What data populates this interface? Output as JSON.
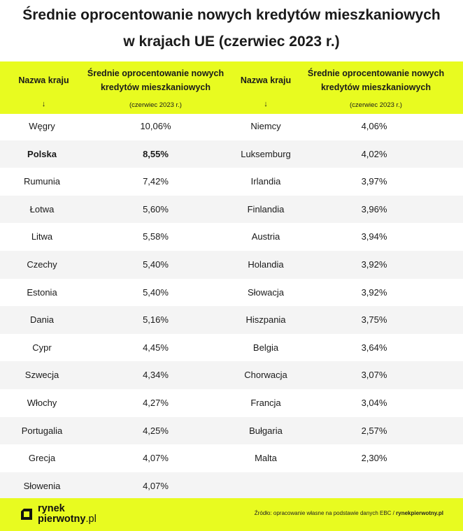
{
  "title": {
    "line1": "Średnie oprocentowanie nowych kredytów mieszkaniowych",
    "line2": "w krajach UE (czerwiec 2023 r.)"
  },
  "header": {
    "country_label": "Nazwa kraju",
    "arrow": "↓",
    "rate_label_line1": "Średnie oprocentowanie nowych",
    "rate_label_line2": "kredytów mieszkaniowych",
    "rate_sub": "(czerwiec 2023 r.)"
  },
  "rows": [
    {
      "c1": "Węgry",
      "r1": "10,06%",
      "c2": "Niemcy",
      "r2": "4,06%"
    },
    {
      "c1": "Polska",
      "r1": "8,55%",
      "c2": "Luksemburg",
      "r2": "4,02%"
    },
    {
      "c1": "Rumunia",
      "r1": "7,42%",
      "c2": "Irlandia",
      "r2": "3,97%"
    },
    {
      "c1": "Łotwa",
      "r1": "5,60%",
      "c2": "Finlandia",
      "r2": "3,96%"
    },
    {
      "c1": "Litwa",
      "r1": "5,58%",
      "c2": "Austria",
      "r2": "3,94%"
    },
    {
      "c1": "Czechy",
      "r1": "5,40%",
      "c2": "Holandia",
      "r2": "3,92%"
    },
    {
      "c1": "Estonia",
      "r1": "5,40%",
      "c2": "Słowacja",
      "r2": "3,92%"
    },
    {
      "c1": "Dania",
      "r1": "5,16%",
      "c2": "Hiszpania",
      "r2": "3,75%"
    },
    {
      "c1": "Cypr",
      "r1": "4,45%",
      "c2": "Belgia",
      "r2": "3,64%"
    },
    {
      "c1": "Szwecja",
      "r1": "4,34%",
      "c2": "Chorwacja",
      "r2": "3,07%"
    },
    {
      "c1": "Włochy",
      "r1": "4,27%",
      "c2": "Francja",
      "r2": "3,04%"
    },
    {
      "c1": "Portugalia",
      "r1": "4,25%",
      "c2": "Bułgaria",
      "r2": "2,57%"
    },
    {
      "c1": "Grecja",
      "r1": "4,07%",
      "c2": "Malta",
      "r2": "2,30%"
    },
    {
      "c1": "Słowenia",
      "r1": "4,07%",
      "c2": "",
      "r2": ""
    }
  ],
  "highlight_row": "Polska",
  "footer": {
    "logo_line1": "rynek",
    "logo_line2": "pierwotny",
    "logo_suffix": ".pl",
    "source_prefix": "Źródło: opracowanie własne na podstawie danych EBC / ",
    "source_site": "rynekpierwotny.pl"
  },
  "colors": {
    "accent": "#e8fb20",
    "row_alt": "#f4f4f4"
  }
}
